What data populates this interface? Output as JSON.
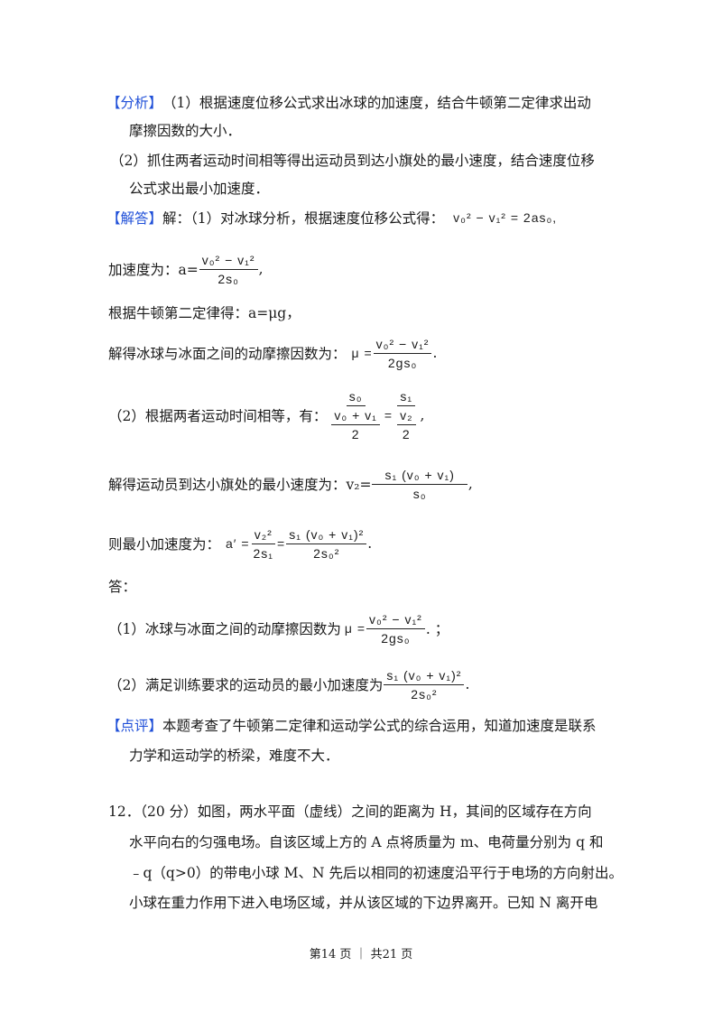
{
  "analysis": {
    "tag": "【分析】",
    "line1": "（1）根据速度位移公式求出冰球的加速度，结合牛顿第二定律求出动",
    "line2": "摩擦因数的大小．",
    "line3": "（2）抓住两者运动时间相等得出运动员到达小旗处的最小速度，结合速度位移",
    "line4": "公式求出最小加速度．"
  },
  "solution": {
    "tag": "【解答】",
    "line1_text": "解：（1）对冰球分析，根据速度位移公式得：",
    "line1_formula": "v₀² − v₁² = 2as₀,",
    "accel_text": "加速度为：a=",
    "accel_num": "v₀² − v₁²",
    "accel_den": "2s₀",
    "accel_tail": ",",
    "newton": "根据牛顿第二定律得：a=μg，",
    "mu_text": "解得冰球与冰面之间的动摩擦因数为：",
    "mu_lhs": "μ =",
    "mu_num": "v₀² − v₁²",
    "mu_den": "2gs₀",
    "mu_tail": ".",
    "time_text": "（2）根据两者运动时间相等，有：",
    "time_l_num": "s₀",
    "time_l_den_num": "v₀ + v₁",
    "time_l_den_den": "2",
    "time_eq": "=",
    "time_r_num": "s₁",
    "time_r_den_num": "v₂",
    "time_r_den_den": "2",
    "time_tail": ",",
    "v2_text": "解得运动员到达小旗处的最小速度为：v₂=",
    "v2_num": "s₁ (v₀ + v₁)",
    "v2_den": "s₀",
    "v2_tail": ",",
    "a_text": "则最小加速度为：",
    "a_lhs": "a′ =",
    "a_f1_num": "v₂²",
    "a_f1_den": "2s₁",
    "a_eq": "=",
    "a_f2_num": "s₁ (v₀ + v₁)²",
    "a_f2_den": "2s₀²",
    "a_tail": "."
  },
  "answer": {
    "label": "答：",
    "a1_text": "（1）冰球与冰面之间的动摩擦因数为",
    "a1_lhs": "μ =",
    "a1_num": "v₀² − v₁²",
    "a1_den": "2gs₀",
    "a1_tail": ". ；",
    "a2_text": "（2）满足训练要求的运动员的最小加速度为",
    "a2_num": "s₁ (v₀ + v₁)²",
    "a2_den": "2s₀²",
    "a2_tail": "."
  },
  "comment": {
    "tag": "【点评】",
    "line1": "本题考查了牛顿第二定律和运动学公式的综合运用，知道加速度是联系",
    "line2": "力学和运动学的桥梁，难度不大．"
  },
  "question12": {
    "line1": "12．（20 分）如图，两水平面（虚线）之间的距离为 H，其间的区域存在方向",
    "line2": "水平向右的匀强电场。自该区域上方的 A 点将质量为 m、电荷量分别为 q 和",
    "line3": "﹣q（q>0）的带电小球 M、N 先后以相同的初速度沿平行于电场的方向射出。",
    "line4": "小球在重力作用下进入电场区域，并从该区域的下边界离开。已知 N 离开电"
  },
  "footer": "第14 页 ｜ 共21 页",
  "colors": {
    "tag": "#1f4fd8",
    "text": "#1a1a1a"
  }
}
